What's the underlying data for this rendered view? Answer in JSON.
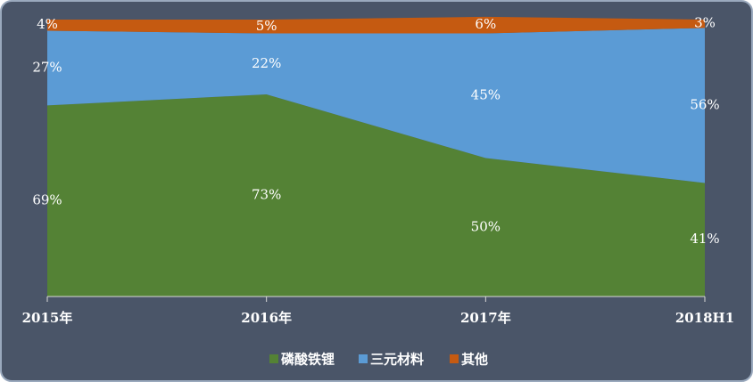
{
  "chart_data": {
    "type": "stacked-area",
    "categories": [
      "2015年",
      "2016年",
      "2017年",
      "2018H1"
    ],
    "series": [
      {
        "name": "磷酸铁锂",
        "color": "#548235",
        "values": [
          69,
          73,
          50,
          41
        ],
        "value_labels": [
          "69%",
          "73%",
          "50%",
          "41%"
        ]
      },
      {
        "name": "三元材料",
        "color": "#5b9bd5",
        "values": [
          27,
          22,
          45,
          56
        ],
        "value_labels": [
          "27%",
          "22%",
          "45%",
          "56%"
        ]
      },
      {
        "name": "其他",
        "color": "#c55a11",
        "values": [
          4,
          5,
          6,
          3
        ],
        "value_labels": [
          "4%",
          "5%",
          "6%",
          "3%"
        ]
      }
    ],
    "ylim": [
      0,
      100
    ]
  }
}
